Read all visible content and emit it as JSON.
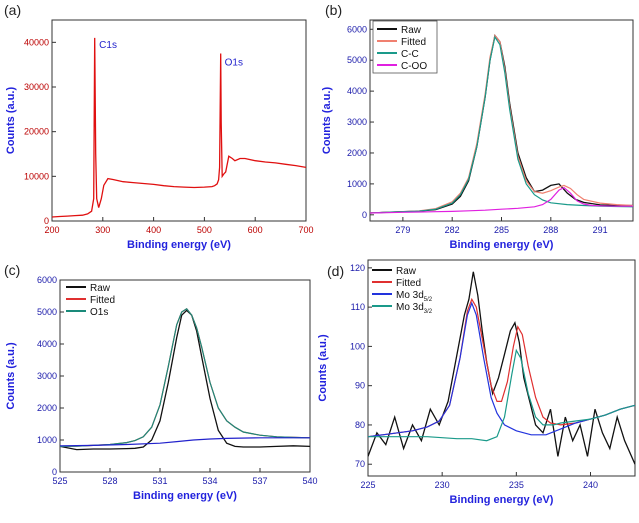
{
  "colors": {
    "raw_a": "#e01010",
    "raw": "#111111",
    "fitted": "#e03030",
    "fitted_b": "#f08070",
    "cc": "#1a9a8a",
    "coo": "#e020e0",
    "o1s": "#1a8a7a",
    "bg_c": "#2222cc",
    "mo52": "#2233dd",
    "mo32": "#1a9a8a",
    "axis_red": "#bb0000",
    "axis_blue": "#1a1aaa"
  },
  "chart_data": [
    {
      "id": "a",
      "panel_label": "(a)",
      "type": "line",
      "xlabel": "Binding energy (eV)",
      "ylabel": "Counts (a.u.)",
      "xlim": [
        200,
        700
      ],
      "ylim": [
        0,
        45000
      ],
      "xticks": [
        "200",
        "300",
        "400",
        "500",
        "600",
        "700"
      ],
      "yticks": [
        "0",
        "10000",
        "20000",
        "30000",
        "40000"
      ],
      "annotations": [
        {
          "text": "C1s",
          "x": 285,
          "y": 41000
        },
        {
          "text": "O1s",
          "x": 532,
          "y": 37000
        }
      ],
      "series": [
        {
          "color_key": "raw_a",
          "x": [
            200,
            215,
            230,
            245,
            260,
            270,
            278,
            282,
            284,
            286,
            288,
            292,
            297,
            302,
            310,
            320,
            340,
            360,
            380,
            400,
            420,
            440,
            460,
            480,
            500,
            515,
            520,
            525,
            528,
            530,
            532,
            533,
            535,
            538,
            542,
            548,
            555,
            560,
            570,
            580,
            600,
            620,
            640,
            660,
            680,
            700
          ],
          "y": [
            900,
            1000,
            1100,
            1200,
            1300,
            1600,
            2200,
            5000,
            41000,
            15000,
            5000,
            3000,
            5000,
            8000,
            9500,
            9300,
            8800,
            8600,
            8400,
            8200,
            7900,
            7700,
            7600,
            7500,
            7600,
            7700,
            7900,
            8300,
            9200,
            12000,
            37500,
            22000,
            10000,
            10500,
            11000,
            14500,
            14000,
            13500,
            14000,
            14000,
            13500,
            13200,
            13000,
            12700,
            12400,
            12000
          ]
        }
      ]
    },
    {
      "id": "b",
      "panel_label": "(b)",
      "type": "line",
      "xlabel": "Binding energy (eV)",
      "ylabel": "Counts (a.u.)",
      "xlim": [
        277,
        293
      ],
      "ylim": [
        -200,
        6300
      ],
      "xticks": [
        "279",
        "282",
        "285",
        "288",
        "291"
      ],
      "yticks": [
        "0",
        "1000",
        "2000",
        "3000",
        "4000",
        "5000",
        "6000"
      ],
      "legend": [
        "Raw",
        "Fitted",
        "C-C",
        "C-OO"
      ],
      "series": [
        {
          "name": "Raw",
          "color_key": "raw",
          "x": [
            277,
            278,
            279,
            280,
            281,
            282,
            282.5,
            283,
            283.5,
            284,
            284.3,
            284.6,
            284.9,
            285.2,
            285.5,
            286,
            286.5,
            287,
            287.5,
            288,
            288.5,
            289,
            289.5,
            290,
            291,
            292,
            293
          ],
          "y": [
            60,
            80,
            100,
            120,
            170,
            350,
            600,
            1100,
            2200,
            3800,
            5000,
            5800,
            5600,
            4800,
            3600,
            2000,
            1200,
            750,
            800,
            950,
            1000,
            700,
            500,
            400,
            320,
            300,
            300
          ]
        },
        {
          "name": "Fitted",
          "color_key": "fitted_b",
          "x": [
            277,
            278,
            279,
            280,
            281,
            282,
            282.5,
            283,
            283.5,
            284,
            284.3,
            284.6,
            284.9,
            285.2,
            285.5,
            286,
            286.5,
            287,
            287.5,
            288,
            288.5,
            288.8,
            289.2,
            289.6,
            290,
            291,
            292,
            293
          ],
          "y": [
            60,
            80,
            100,
            130,
            200,
            420,
            700,
            1200,
            2300,
            3900,
            5100,
            5800,
            5600,
            4700,
            3500,
            1900,
            1100,
            750,
            700,
            780,
            900,
            950,
            850,
            650,
            500,
            380,
            330,
            300
          ]
        },
        {
          "name": "C-C",
          "color_key": "cc",
          "x": [
            277,
            278,
            279,
            280,
            281,
            282,
            282.5,
            283,
            283.5,
            284,
            284.3,
            284.6,
            284.9,
            285.2,
            285.5,
            286,
            286.5,
            287,
            287.5,
            288,
            289,
            290,
            291,
            292,
            293
          ],
          "y": [
            60,
            80,
            100,
            120,
            180,
            380,
            650,
            1150,
            2200,
            3800,
            5000,
            5750,
            5500,
            4600,
            3400,
            1800,
            1000,
            650,
            480,
            390,
            330,
            300,
            280,
            270,
            260
          ]
        },
        {
          "name": "C-OO",
          "color_key": "coo",
          "x": [
            277,
            278,
            279,
            280,
            281,
            282,
            283,
            284,
            285,
            286,
            287,
            287.5,
            288,
            288.5,
            288.8,
            289.2,
            289.6,
            290,
            290.5,
            291,
            292,
            293
          ],
          "y": [
            60,
            70,
            80,
            90,
            100,
            110,
            130,
            150,
            180,
            210,
            260,
            330,
            500,
            800,
            880,
            700,
            450,
            350,
            300,
            290,
            280,
            280
          ]
        }
      ]
    },
    {
      "id": "c",
      "panel_label": "(c)",
      "type": "line",
      "xlabel": "Binding energy (eV)",
      "ylabel": "Counts (a.u.)",
      "xlim": [
        525,
        540
      ],
      "ylim": [
        0,
        6000
      ],
      "xticks": [
        "525",
        "528",
        "531",
        "534",
        "537",
        "540"
      ],
      "yticks": [
        "0",
        "1000",
        "2000",
        "3000",
        "4000",
        "5000",
        "6000"
      ],
      "legend": [
        "Raw",
        "Fitted",
        "O1s"
      ],
      "series": [
        {
          "name": "Raw",
          "color_key": "raw",
          "x": [
            525,
            526,
            527,
            528,
            529,
            529.5,
            530,
            530.5,
            531,
            531.5,
            532,
            532.3,
            532.6,
            532.9,
            533.2,
            533.5,
            534,
            534.5,
            535,
            535.5,
            536,
            537,
            538,
            539,
            540
          ],
          "y": [
            800,
            700,
            720,
            720,
            730,
            740,
            780,
            1000,
            1600,
            2800,
            4200,
            4900,
            5050,
            4900,
            4400,
            3600,
            2300,
            1300,
            900,
            800,
            780,
            780,
            800,
            820,
            800
          ]
        },
        {
          "name": "Fitted",
          "color_key": "fitted",
          "x": [
            525,
            526,
            527,
            528,
            529,
            529.5,
            530,
            530.5,
            531,
            531.5,
            532,
            532.3,
            532.6,
            532.9,
            533.2,
            533.5,
            534,
            534.5,
            535,
            535.5,
            536,
            537,
            538,
            539,
            540
          ],
          "y": [
            800,
            810,
            830,
            860,
            920,
            980,
            1100,
            1400,
            2100,
            3300,
            4600,
            5000,
            5100,
            4900,
            4500,
            3900,
            2800,
            2000,
            1600,
            1400,
            1250,
            1150,
            1100,
            1080,
            1070
          ]
        },
        {
          "name": "O1s",
          "color_key": "o1s",
          "x": [
            525,
            526,
            527,
            528,
            529,
            529.5,
            530,
            530.5,
            531,
            531.5,
            532,
            532.3,
            532.6,
            532.9,
            533.2,
            533.5,
            534,
            534.5,
            535,
            535.5,
            536,
            537,
            538,
            539,
            540
          ],
          "y": [
            800,
            810,
            830,
            860,
            920,
            980,
            1100,
            1400,
            2100,
            3300,
            4600,
            5000,
            5100,
            4900,
            4500,
            3900,
            2800,
            2000,
            1600,
            1400,
            1250,
            1150,
            1100,
            1080,
            1070
          ]
        },
        {
          "name": "",
          "color_key": "bg_c",
          "x": [
            525,
            527,
            529,
            531,
            532,
            533,
            534,
            535,
            537,
            540
          ],
          "y": [
            820,
            830,
            860,
            900,
            950,
            1000,
            1030,
            1050,
            1070,
            1070
          ]
        }
      ]
    },
    {
      "id": "d",
      "panel_label": "(d)",
      "type": "line",
      "xlabel": "Binding energy (eV)",
      "ylabel": "Counts (a.u.)",
      "xlim": [
        225,
        243
      ],
      "ylim": [
        67,
        122
      ],
      "xticks": [
        "225",
        "230",
        "235",
        "240"
      ],
      "yticks": [
        "70",
        "80",
        "90",
        "100",
        "110",
        "120"
      ],
      "legend": [
        "Raw",
        "Fitted",
        "Mo 3d",
        "Mo 3d"
      ],
      "legend_sub": [
        "",
        "",
        "5/2",
        "3/2"
      ],
      "series": [
        {
          "name": "Raw",
          "color_key": "raw",
          "x": [
            225,
            225.6,
            226.2,
            226.8,
            227.4,
            228,
            228.6,
            229.2,
            229.8,
            230.4,
            231,
            231.5,
            231.8,
            232.1,
            232.4,
            232.7,
            233,
            233.4,
            233.8,
            234.2,
            234.6,
            234.9,
            235.2,
            235.5,
            235.9,
            236.3,
            236.8,
            237.3,
            237.8,
            238.3,
            238.8,
            239.3,
            239.8,
            240.3,
            240.8,
            241.3,
            241.8,
            242.3,
            243
          ],
          "y": [
            72,
            78,
            75,
            82,
            74,
            80,
            76,
            84,
            80,
            86,
            98,
            108,
            112,
            119,
            113,
            104,
            96,
            88,
            92,
            98,
            104,
            106,
            101,
            92,
            86,
            80,
            78,
            84,
            72,
            82,
            76,
            80,
            72,
            84,
            78,
            74,
            82,
            76,
            70
          ]
        },
        {
          "name": "Fitted",
          "color_key": "fitted",
          "x": [
            225,
            226,
            227,
            228,
            229,
            229.8,
            230.5,
            231.2,
            231.7,
            232,
            232.3,
            232.8,
            233.3,
            233.7,
            234,
            234.4,
            234.8,
            235.1,
            235.4,
            235.8,
            236.3,
            236.8,
            237.3,
            238,
            239,
            240,
            241,
            242,
            243
          ],
          "y": [
            77,
            77.5,
            78,
            78.5,
            79.5,
            81,
            85,
            97,
            109,
            112,
            110,
            100,
            90,
            86,
            86,
            91,
            100,
            105,
            103,
            95,
            87,
            82,
            80.5,
            80,
            80.5,
            81.5,
            82.5,
            84,
            85
          ]
        },
        {
          "name": "Mo 3d5/2",
          "color_key": "mo52",
          "x": [
            225,
            226,
            227,
            228,
            229,
            229.8,
            230.5,
            231.2,
            231.7,
            232,
            232.3,
            232.8,
            233.3,
            233.7,
            234.2,
            235,
            236,
            237,
            238,
            239,
            240,
            241,
            242,
            243
          ],
          "y": [
            77,
            77.5,
            78,
            78.5,
            79.5,
            81,
            85,
            97,
            108,
            111,
            108,
            97,
            87,
            83,
            80,
            78.5,
            77.5,
            77.5,
            79,
            80.5,
            81.5,
            82.5,
            84,
            85
          ]
        },
        {
          "name": "Mo 3d3/2",
          "color_key": "mo32",
          "x": [
            225,
            227,
            229,
            231,
            232,
            233,
            233.7,
            234.2,
            234.7,
            235,
            235.3,
            235.8,
            236.3,
            236.8,
            237.5,
            238,
            239,
            240,
            241,
            242,
            243
          ],
          "y": [
            77,
            77,
            77,
            76.5,
            76.5,
            76,
            77,
            82,
            93,
            99,
            97,
            88,
            82,
            80,
            80,
            80.5,
            81,
            81.5,
            82.5,
            84,
            85
          ]
        }
      ]
    }
  ]
}
